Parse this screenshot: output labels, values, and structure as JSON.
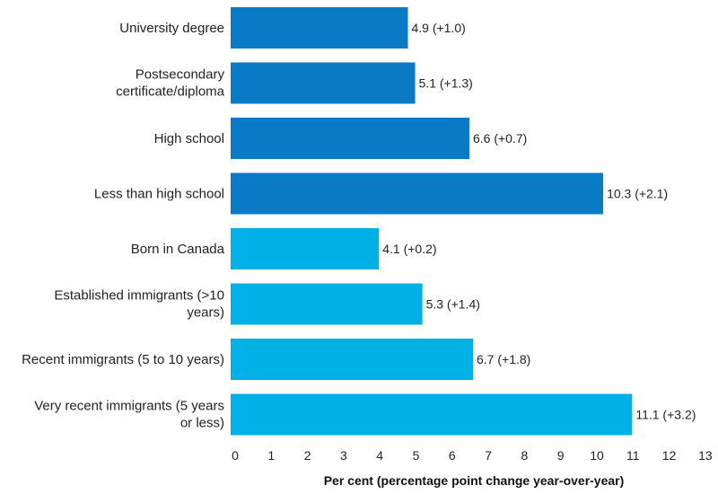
{
  "chart_data": {
    "type": "bar",
    "orientation": "horizontal",
    "xlabel": "Per cent (percentage point change year-over-year)",
    "xlim": [
      0,
      13
    ],
    "xticks": [
      "0",
      "1",
      "2",
      "3",
      "4",
      "5",
      "6",
      "7",
      "8",
      "9",
      "10",
      "11",
      "12",
      "13"
    ],
    "grid": false,
    "categories": [
      [
        "University degree"
      ],
      [
        "Postsecondary",
        "certificate/diploma"
      ],
      [
        "High school"
      ],
      [
        "Less than high school"
      ],
      [
        "Born in Canada"
      ],
      [
        "Established immigrants (>10",
        "years)"
      ],
      [
        "Recent immigrants (5 to 10 years)"
      ],
      [
        "Very recent immigrants (5 years",
        "or less)"
      ]
    ],
    "values": [
      4.9,
      5.1,
      6.6,
      10.3,
      4.1,
      5.3,
      6.7,
      11.1
    ],
    "data_labels": [
      "4.9 (+1.0)",
      "5.1 (+1.3)",
      "6.6 (+0.7)",
      "10.3 (+2.1)",
      "4.1 (+0.2)",
      "5.3 (+1.4)",
      "6.7 (+1.8)",
      "11.1 (+3.2)"
    ],
    "colors": [
      "#0a79c6",
      "#0a79c6",
      "#0a79c6",
      "#0a79c6",
      "#00b0e6",
      "#00b0e6",
      "#00b0e6",
      "#00b0e6"
    ]
  }
}
